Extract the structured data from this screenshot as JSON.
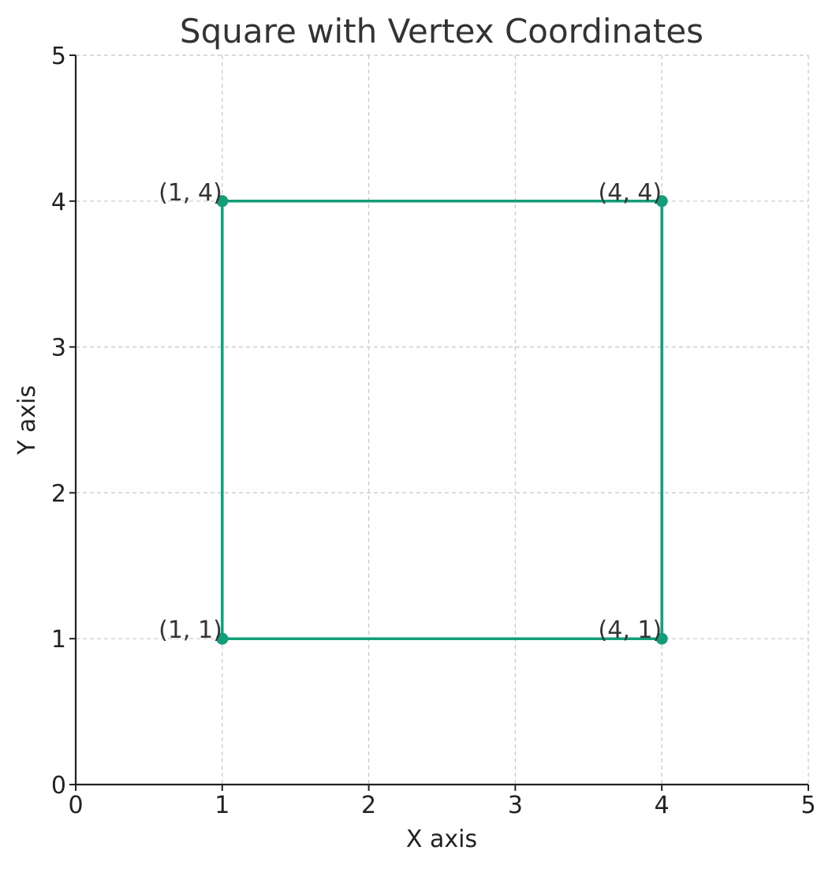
{
  "chart_data": {
    "type": "line",
    "title": "Square with Vertex Coordinates",
    "xlabel": "X axis",
    "ylabel": "Y axis",
    "xlim": [
      0,
      5
    ],
    "ylim": [
      0,
      5
    ],
    "xticks": [
      0,
      1,
      2,
      3,
      4,
      5
    ],
    "yticks": [
      0,
      1,
      2,
      3,
      4,
      5
    ],
    "grid": true,
    "series": [
      {
        "x": [
          1,
          4,
          4,
          1,
          1
        ],
        "y": [
          1,
          1,
          4,
          4,
          1
        ],
        "color": "#139e7a",
        "marker": "circle"
      }
    ],
    "annotations": [
      {
        "x": 1,
        "y": 1,
        "text": "(1, 1)"
      },
      {
        "x": 4,
        "y": 1,
        "text": "(4, 1)"
      },
      {
        "x": 4,
        "y": 4,
        "text": "(4, 4)"
      },
      {
        "x": 1,
        "y": 4,
        "text": "(1, 4)"
      }
    ]
  }
}
